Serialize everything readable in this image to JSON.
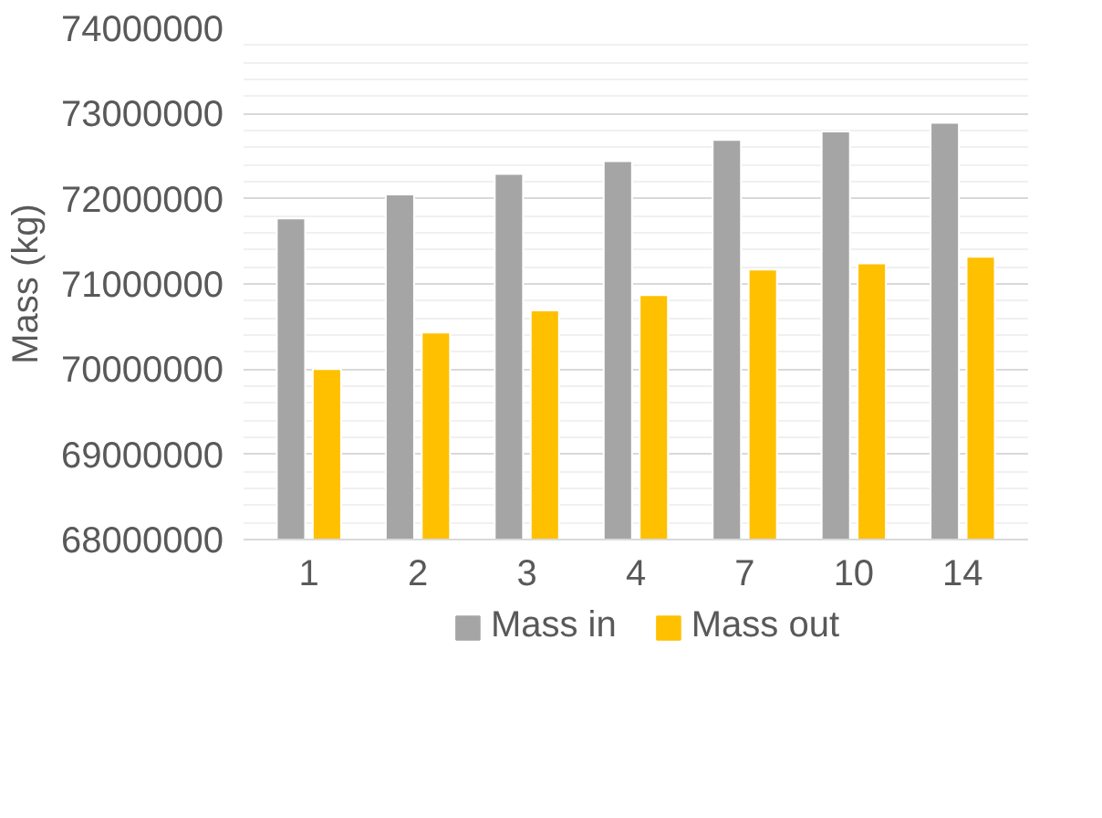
{
  "chart_data": {
    "type": "bar",
    "ylabel": "Mass (kg)",
    "categories": [
      "1",
      "2",
      "3",
      "4",
      "7",
      "10",
      "14"
    ],
    "series": [
      {
        "name": "Mass in",
        "color": "#a5a5a5",
        "values": [
          71770000,
          72050000,
          72290000,
          72440000,
          72690000,
          72790000,
          72890000
        ]
      },
      {
        "name": "Mass out",
        "color": "#ffc000",
        "values": [
          70000000,
          70430000,
          70690000,
          70870000,
          71170000,
          71240000,
          71320000
        ]
      }
    ],
    "ylim": [
      68000000,
      74000000
    ],
    "yticks": [
      68000000,
      69000000,
      70000000,
      71000000,
      72000000,
      73000000,
      74000000
    ],
    "grid": "y",
    "legend": "bottom"
  }
}
